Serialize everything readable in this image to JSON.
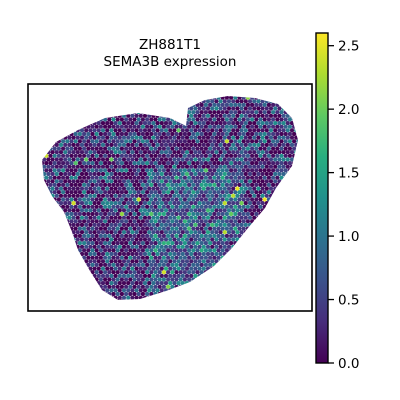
{
  "chart_data": {
    "type": "heatmap",
    "title": "ZH881T1",
    "subtitle": "SEMA3B expression",
    "colorbar": {
      "colormap": "viridis",
      "range": [
        0.0,
        2.6
      ],
      "ticks": [
        0.0,
        0.5,
        1.0,
        1.5,
        2.0,
        2.5
      ],
      "tick_labels": [
        "0.0",
        "0.5",
        "1.0",
        "1.5",
        "2.0",
        "2.5"
      ]
    },
    "grid": false,
    "axes_visible": false,
    "colors": {
      "low": "#440154",
      "mid": "#21918c",
      "high": "#fde725"
    }
  }
}
